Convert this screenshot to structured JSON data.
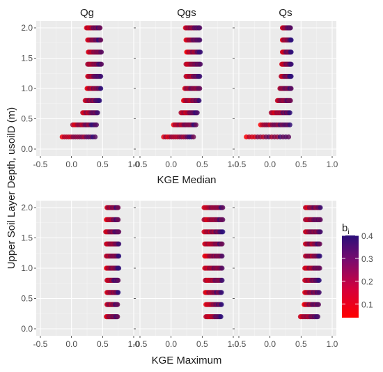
{
  "chart_data": {
    "type": "scatter",
    "facet_columns": [
      "Qg",
      "Qgs",
      "Qs"
    ],
    "rows": [
      {
        "xlabel": "KGE Median"
      },
      {
        "xlabel": "KGE Maximum"
      }
    ],
    "ylabel": "Upper Soil Layer Depth, usoilD (m)",
    "xlim": [
      -0.5,
      1.0
    ],
    "ylim": [
      0.0,
      2.0
    ],
    "x_ticks": [
      "-0.5",
      "0.0",
      "0.5",
      "1.0"
    ],
    "y_ticks": [
      "0.0",
      "0.5",
      "1.0",
      "1.5",
      "2.0"
    ],
    "grid": true,
    "legend": {
      "title": "b",
      "title_subscript": "i",
      "position": "right",
      "type": "colorbar",
      "range": [
        0.04,
        0.4
      ],
      "ticks": [
        "0.1",
        "0.2",
        "0.3",
        "0.4"
      ],
      "tick_values": [
        0.1,
        0.2,
        0.3,
        0.4
      ],
      "color_low": "#ff0000",
      "color_high": "#2b0f7a"
    },
    "depths": [
      0.2,
      0.4,
      0.6,
      0.8,
      1.0,
      1.2,
      1.4,
      1.6,
      1.8,
      2.0
    ],
    "panels": [
      {
        "row": 0,
        "col": 0,
        "series": [
          {
            "y": 0.2,
            "x_min": -0.15,
            "x_max": 0.38
          },
          {
            "y": 0.4,
            "x_min": 0.02,
            "x_max": 0.4
          },
          {
            "y": 0.6,
            "x_min": 0.18,
            "x_max": 0.42
          },
          {
            "y": 0.8,
            "x_min": 0.22,
            "x_max": 0.45
          },
          {
            "y": 1.0,
            "x_min": 0.25,
            "x_max": 0.47
          },
          {
            "y": 1.2,
            "x_min": 0.26,
            "x_max": 0.47
          },
          {
            "y": 1.4,
            "x_min": 0.26,
            "x_max": 0.48
          },
          {
            "y": 1.6,
            "x_min": 0.27,
            "x_max": 0.48
          },
          {
            "y": 1.8,
            "x_min": 0.26,
            "x_max": 0.47
          },
          {
            "y": 2.0,
            "x_min": 0.24,
            "x_max": 0.46
          }
        ]
      },
      {
        "row": 0,
        "col": 1,
        "series": [
          {
            "y": 0.2,
            "x_min": -0.12,
            "x_max": 0.36
          },
          {
            "y": 0.4,
            "x_min": 0.04,
            "x_max": 0.4
          },
          {
            "y": 0.6,
            "x_min": 0.16,
            "x_max": 0.42
          },
          {
            "y": 0.8,
            "x_min": 0.2,
            "x_max": 0.45
          },
          {
            "y": 1.0,
            "x_min": 0.22,
            "x_max": 0.46
          },
          {
            "y": 1.2,
            "x_min": 0.24,
            "x_max": 0.46
          },
          {
            "y": 1.4,
            "x_min": 0.24,
            "x_max": 0.47
          },
          {
            "y": 1.6,
            "x_min": 0.25,
            "x_max": 0.47
          },
          {
            "y": 1.8,
            "x_min": 0.24,
            "x_max": 0.46
          },
          {
            "y": 2.0,
            "x_min": 0.23,
            "x_max": 0.46
          }
        ]
      },
      {
        "row": 0,
        "col": 2,
        "series": [
          {
            "y": 0.2,
            "x_min": -0.38,
            "x_max": 0.3
          },
          {
            "y": 0.4,
            "x_min": -0.15,
            "x_max": 0.32
          },
          {
            "y": 0.6,
            "x_min": 0.02,
            "x_max": 0.32
          },
          {
            "y": 0.8,
            "x_min": 0.12,
            "x_max": 0.33
          },
          {
            "y": 1.0,
            "x_min": 0.16,
            "x_max": 0.34
          },
          {
            "y": 1.2,
            "x_min": 0.18,
            "x_max": 0.34
          },
          {
            "y": 1.4,
            "x_min": 0.19,
            "x_max": 0.34
          },
          {
            "y": 1.6,
            "x_min": 0.2,
            "x_max": 0.34
          },
          {
            "y": 1.8,
            "x_min": 0.2,
            "x_max": 0.34
          },
          {
            "y": 2.0,
            "x_min": 0.2,
            "x_max": 0.33
          }
        ]
      },
      {
        "row": 1,
        "col": 0,
        "series": [
          {
            "y": 0.2,
            "x_min": 0.56,
            "x_max": 0.74
          },
          {
            "y": 0.4,
            "x_min": 0.57,
            "x_max": 0.74
          },
          {
            "y": 0.6,
            "x_min": 0.57,
            "x_max": 0.75
          },
          {
            "y": 0.8,
            "x_min": 0.57,
            "x_max": 0.75
          },
          {
            "y": 1.0,
            "x_min": 0.56,
            "x_max": 0.76
          },
          {
            "y": 1.2,
            "x_min": 0.56,
            "x_max": 0.76
          },
          {
            "y": 1.4,
            "x_min": 0.56,
            "x_max": 0.76
          },
          {
            "y": 1.6,
            "x_min": 0.55,
            "x_max": 0.76
          },
          {
            "y": 1.8,
            "x_min": 0.56,
            "x_max": 0.75
          },
          {
            "y": 2.0,
            "x_min": 0.57,
            "x_max": 0.75
          }
        ]
      },
      {
        "row": 1,
        "col": 1,
        "series": [
          {
            "y": 0.2,
            "x_min": 0.56,
            "x_max": 0.8
          },
          {
            "y": 0.4,
            "x_min": 0.56,
            "x_max": 0.81
          },
          {
            "y": 0.6,
            "x_min": 0.55,
            "x_max": 0.81
          },
          {
            "y": 0.8,
            "x_min": 0.55,
            "x_max": 0.82
          },
          {
            "y": 1.0,
            "x_min": 0.54,
            "x_max": 0.82
          },
          {
            "y": 1.2,
            "x_min": 0.54,
            "x_max": 0.82
          },
          {
            "y": 1.4,
            "x_min": 0.54,
            "x_max": 0.82
          },
          {
            "y": 1.6,
            "x_min": 0.53,
            "x_max": 0.83
          },
          {
            "y": 1.8,
            "x_min": 0.53,
            "x_max": 0.83
          },
          {
            "y": 2.0,
            "x_min": 0.53,
            "x_max": 0.83
          }
        ]
      },
      {
        "row": 1,
        "col": 2,
        "series": [
          {
            "y": 0.2,
            "x_min": 0.49,
            "x_max": 0.77
          },
          {
            "y": 0.4,
            "x_min": 0.55,
            "x_max": 0.78
          },
          {
            "y": 0.6,
            "x_min": 0.56,
            "x_max": 0.79
          },
          {
            "y": 0.8,
            "x_min": 0.56,
            "x_max": 0.79
          },
          {
            "y": 1.0,
            "x_min": 0.56,
            "x_max": 0.8
          },
          {
            "y": 1.2,
            "x_min": 0.57,
            "x_max": 0.8
          },
          {
            "y": 1.4,
            "x_min": 0.57,
            "x_max": 0.8
          },
          {
            "y": 1.6,
            "x_min": 0.57,
            "x_max": 0.81
          },
          {
            "y": 1.8,
            "x_min": 0.57,
            "x_max": 0.81
          },
          {
            "y": 2.0,
            "x_min": 0.57,
            "x_max": 0.81
          }
        ]
      }
    ]
  }
}
